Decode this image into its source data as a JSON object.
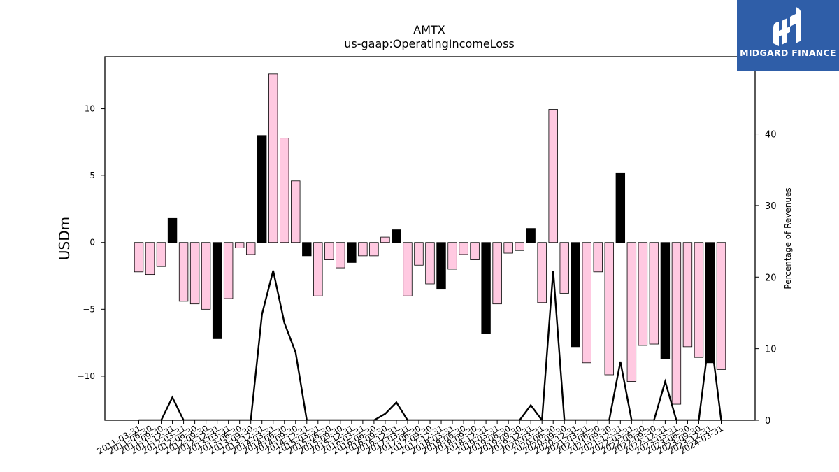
{
  "chart_data": {
    "type": "bar",
    "title": "AMTX",
    "subtitle": "us-gaap:OperatingIncomeLoss",
    "ylabel": "USDm",
    "y2label": "Percentage of Revenues",
    "ylim": [
      -13.3,
      13.9
    ],
    "y2lim": [
      0,
      50.8
    ],
    "yticks": [
      -10,
      -5,
      0,
      5,
      10
    ],
    "y2ticks": [
      0,
      10,
      20,
      30,
      40,
      50
    ],
    "xtick_labels": [
      "2011-03-31",
      "2011-06-30",
      "2011-09-30",
      "2011-12-31",
      "2012-03-31",
      "2012-06-30",
      "2012-09-30",
      "2012-12-31",
      "2013-03-31",
      "2013-06-30",
      "2013-09-30",
      "2013-12-31",
      "2014-03-31",
      "2014-06-30",
      "2014-09-30",
      "2014-12-31",
      "2015-03-31",
      "2015-06-30",
      "2015-09-30",
      "2015-12-31",
      "2016-03-31",
      "2016-06-30",
      "2016-09-30",
      "2016-12-31",
      "2017-03-31",
      "2017-06-30",
      "2017-09-30",
      "2017-12-31",
      "2018-03-31",
      "2018-06-30",
      "2018-09-30",
      "2018-12-31",
      "2019-03-31",
      "2019-06-30",
      "2019-09-30",
      "2019-12-31",
      "2020-03-31",
      "2020-06-30",
      "2020-09-30",
      "2020-12-31",
      "2021-03-31",
      "2021-06-30",
      "2021-09-30",
      "2021-12-31",
      "2022-03-31",
      "2022-06-30",
      "2022-09-30",
      "2022-12-31",
      "2023-03-31",
      "2023-06-30",
      "2023-09-30",
      "2023-12-31",
      "2024-03-31"
    ],
    "values": [
      -2.2,
      -2.4,
      -1.8,
      1.8,
      -4.4,
      -4.6,
      -5.0,
      -7.2,
      -4.2,
      -0.4,
      -0.9,
      8.0,
      12.6,
      7.8,
      4.6,
      -1.0,
      -4.0,
      -1.3,
      -1.9,
      -1.5,
      -1.0,
      -1.0,
      0.4,
      0.95,
      -4.0,
      -1.7,
      -3.1,
      -3.5,
      -2.0,
      -0.9,
      -1.3,
      -6.8,
      -4.6,
      -0.8,
      -0.6,
      1.05,
      -4.5,
      9.95,
      -3.8,
      -7.8,
      -9.0,
      -2.2,
      -9.9,
      5.2,
      -10.4,
      -7.7,
      -7.6,
      -8.7,
      -12.1,
      -7.8,
      -8.6,
      -9.0,
      -9.5
    ],
    "highlight": [
      false,
      false,
      false,
      true,
      false,
      false,
      false,
      true,
      false,
      false,
      false,
      true,
      false,
      false,
      false,
      true,
      false,
      false,
      false,
      true,
      false,
      false,
      false,
      true,
      false,
      false,
      false,
      true,
      false,
      false,
      false,
      true,
      false,
      false,
      false,
      true,
      false,
      false,
      false,
      true,
      false,
      false,
      false,
      true,
      false,
      false,
      false,
      true,
      false,
      false,
      false,
      true,
      false
    ],
    "pct_of_revenues": [
      0,
      0,
      0,
      3.2,
      0,
      0,
      0,
      0,
      0,
      0,
      0,
      14.8,
      20.9,
      13.6,
      9.5,
      0,
      0,
      0,
      0,
      0,
      0,
      0,
      0.9,
      2.5,
      0,
      0,
      0,
      0,
      0,
      0,
      0,
      0,
      0,
      0,
      0,
      2.1,
      0,
      20.9,
      0,
      0,
      0,
      0,
      0,
      8.2,
      0,
      0,
      0,
      5.4,
      0,
      0,
      0,
      12.5,
      0
    ],
    "colors": {
      "bar": "#ffc9e1",
      "highlight_bar": "#000000",
      "line": "#000000"
    },
    "grid": false
  },
  "logo": {
    "text": "MIDGARD FINANCE",
    "bg": "#2f5ea8"
  }
}
